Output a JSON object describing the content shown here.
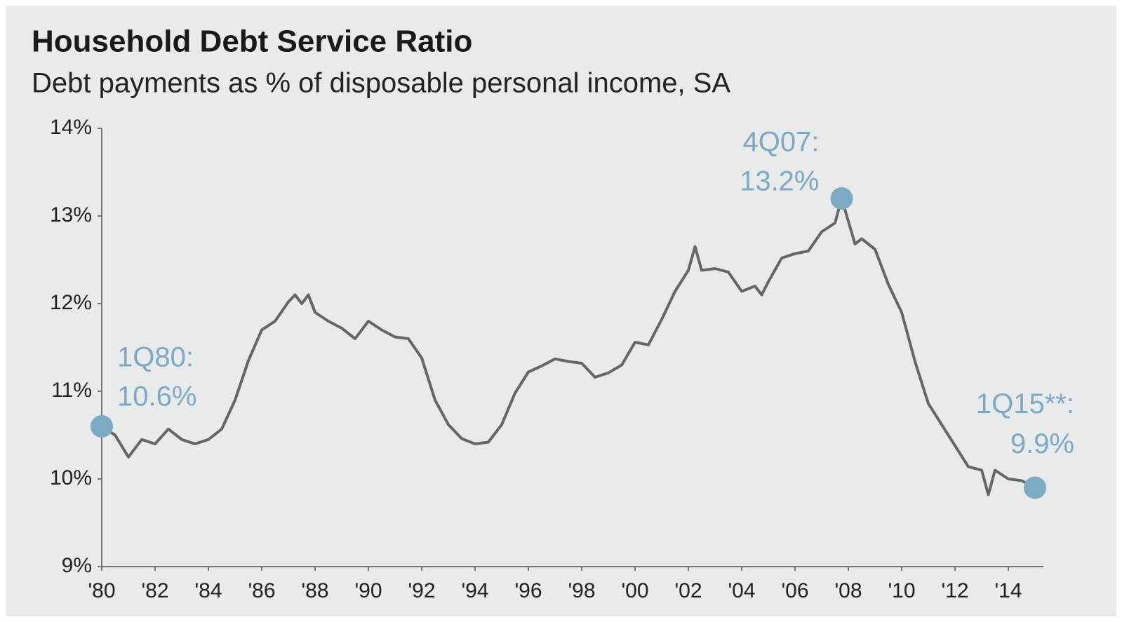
{
  "chart_data": {
    "type": "line",
    "title": "Household Debt Service Ratio",
    "subtitle": "Debt payments as % of disposable personal income, SA",
    "color": "#666666",
    "marker_color": "#7aaac4",
    "x": [
      1980,
      1980.5,
      1981,
      1981.5,
      1982,
      1982.5,
      1983,
      1983.5,
      1984,
      1984.5,
      1985,
      1985.5,
      1986,
      1986.5,
      1987,
      1987.25,
      1987.5,
      1987.75,
      1988,
      1988.5,
      1989,
      1989.5,
      1990,
      1990.5,
      1991,
      1991.5,
      1992,
      1992.5,
      1993,
      1993.5,
      1994,
      1994.5,
      1995,
      1995.5,
      1996,
      1996.5,
      1997,
      1997.5,
      1998,
      1998.5,
      1999,
      1999.5,
      2000,
      2000.5,
      2001,
      2001.5,
      2002,
      2002.25,
      2002.5,
      2003,
      2003.5,
      2004,
      2004.5,
      2004.75,
      2005,
      2005.5,
      2006,
      2006.5,
      2007,
      2007.5,
      2007.75,
      2008.25,
      2008.5,
      2009,
      2009.5,
      2010,
      2010.5,
      2011,
      2011.5,
      2012,
      2012.5,
      2013,
      2013.25,
      2013.5,
      2014,
      2014.5,
      2015
    ],
    "values": [
      10.6,
      10.5,
      10.25,
      10.45,
      10.4,
      10.57,
      10.45,
      10.4,
      10.45,
      10.57,
      10.9,
      11.35,
      11.7,
      11.8,
      12.02,
      12.1,
      12.0,
      12.1,
      11.9,
      11.8,
      11.72,
      11.6,
      11.8,
      11.7,
      11.62,
      11.6,
      11.38,
      10.9,
      10.62,
      10.46,
      10.4,
      10.42,
      10.62,
      10.98,
      11.22,
      11.29,
      11.37,
      11.34,
      11.32,
      11.16,
      11.21,
      11.3,
      11.56,
      11.53,
      11.82,
      12.14,
      12.38,
      12.65,
      12.38,
      12.4,
      12.36,
      12.14,
      12.2,
      12.1,
      12.25,
      12.52,
      12.57,
      12.6,
      12.82,
      12.92,
      13.2,
      12.68,
      12.74,
      12.62,
      12.22,
      11.9,
      11.34,
      10.86,
      10.62,
      10.38,
      10.14,
      10.1,
      9.82,
      10.1,
      10.0,
      9.98,
      9.9
    ],
    "xlim": [
      1980,
      2015
    ],
    "xticks": [
      {
        "value": 1980,
        "label": "'80"
      },
      {
        "value": 1982,
        "label": "'82"
      },
      {
        "value": 1984,
        "label": "'84"
      },
      {
        "value": 1986,
        "label": "'86"
      },
      {
        "value": 1988,
        "label": "'88"
      },
      {
        "value": 1990,
        "label": "'90"
      },
      {
        "value": 1992,
        "label": "'92"
      },
      {
        "value": 1994,
        "label": "'94"
      },
      {
        "value": 1996,
        "label": "'96"
      },
      {
        "value": 1998,
        "label": "'98"
      },
      {
        "value": 2000,
        "label": "'00"
      },
      {
        "value": 2002,
        "label": "'02"
      },
      {
        "value": 2004,
        "label": "'04"
      },
      {
        "value": 2006,
        "label": "'06"
      },
      {
        "value": 2008,
        "label": "'08"
      },
      {
        "value": 2010,
        "label": "'10"
      },
      {
        "value": 2012,
        "label": "'12"
      },
      {
        "value": 2014,
        "label": "'14"
      }
    ],
    "ylim": [
      9,
      14
    ],
    "yticks": [
      {
        "value": 9,
        "label": "9%"
      },
      {
        "value": 10,
        "label": "10%"
      },
      {
        "value": 11,
        "label": "11%"
      },
      {
        "value": 12,
        "label": "12%"
      },
      {
        "value": 13,
        "label": "13%"
      },
      {
        "value": 14,
        "label": "14%"
      }
    ],
    "grid": false,
    "annotations": [
      {
        "text": [
          "1Q80:",
          "10.6%"
        ],
        "x": 1980,
        "y": 10.6
      },
      {
        "text": [
          "4Q07:",
          "13.2%"
        ],
        "x": 2007.75,
        "y": 13.2
      },
      {
        "text": [
          "1Q15**:",
          "9.9%"
        ],
        "x": 2015,
        "y": 9.9
      }
    ]
  }
}
